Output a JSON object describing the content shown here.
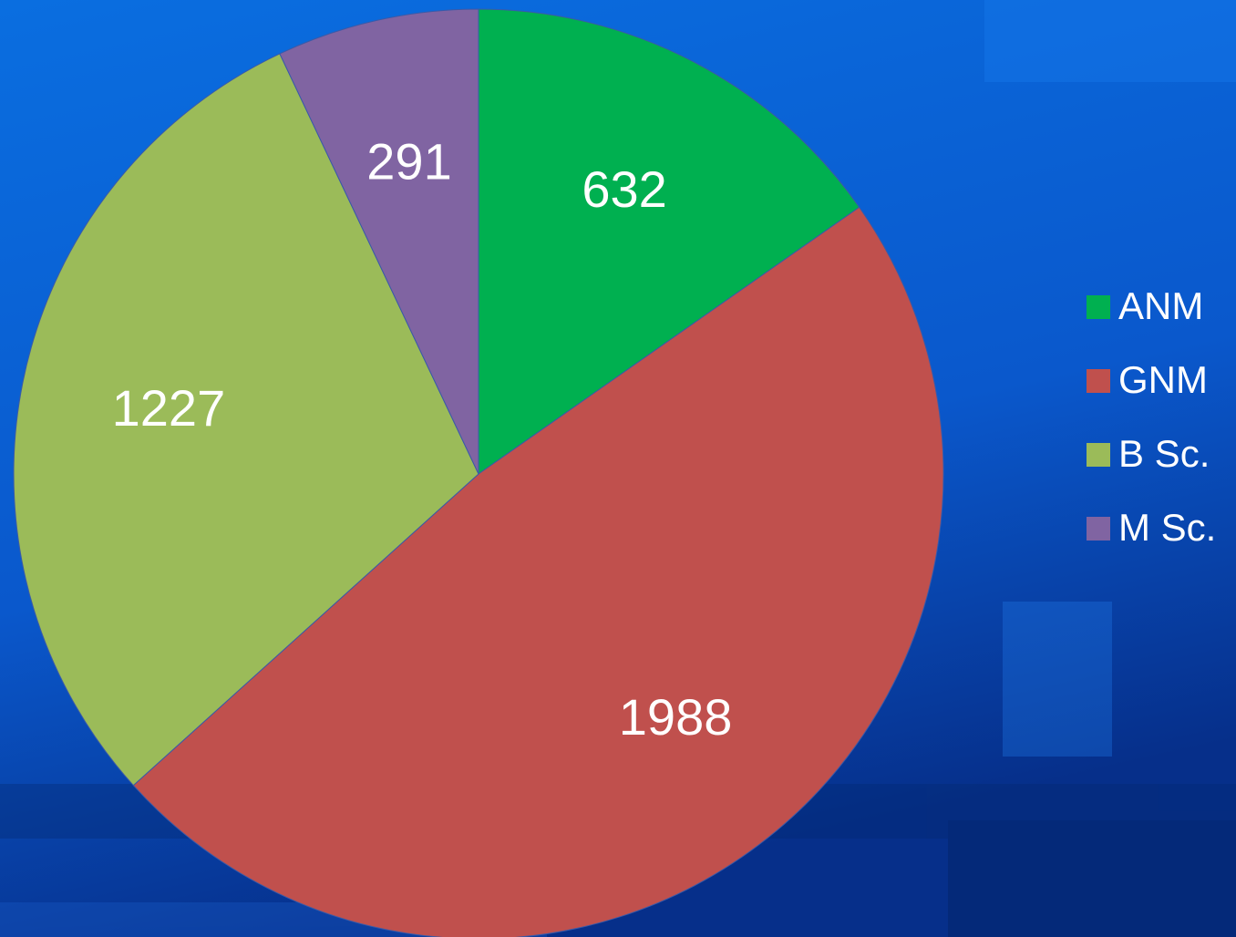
{
  "chart_data": {
    "type": "pie",
    "categories": [
      "ANM",
      "GNM",
      "B Sc.",
      "M Sc."
    ],
    "values": [
      632,
      1988,
      1227,
      291
    ],
    "colors": [
      "#00b050",
      "#c0504d",
      "#9bbb59",
      "#8064a2"
    ],
    "legend": "right"
  }
}
